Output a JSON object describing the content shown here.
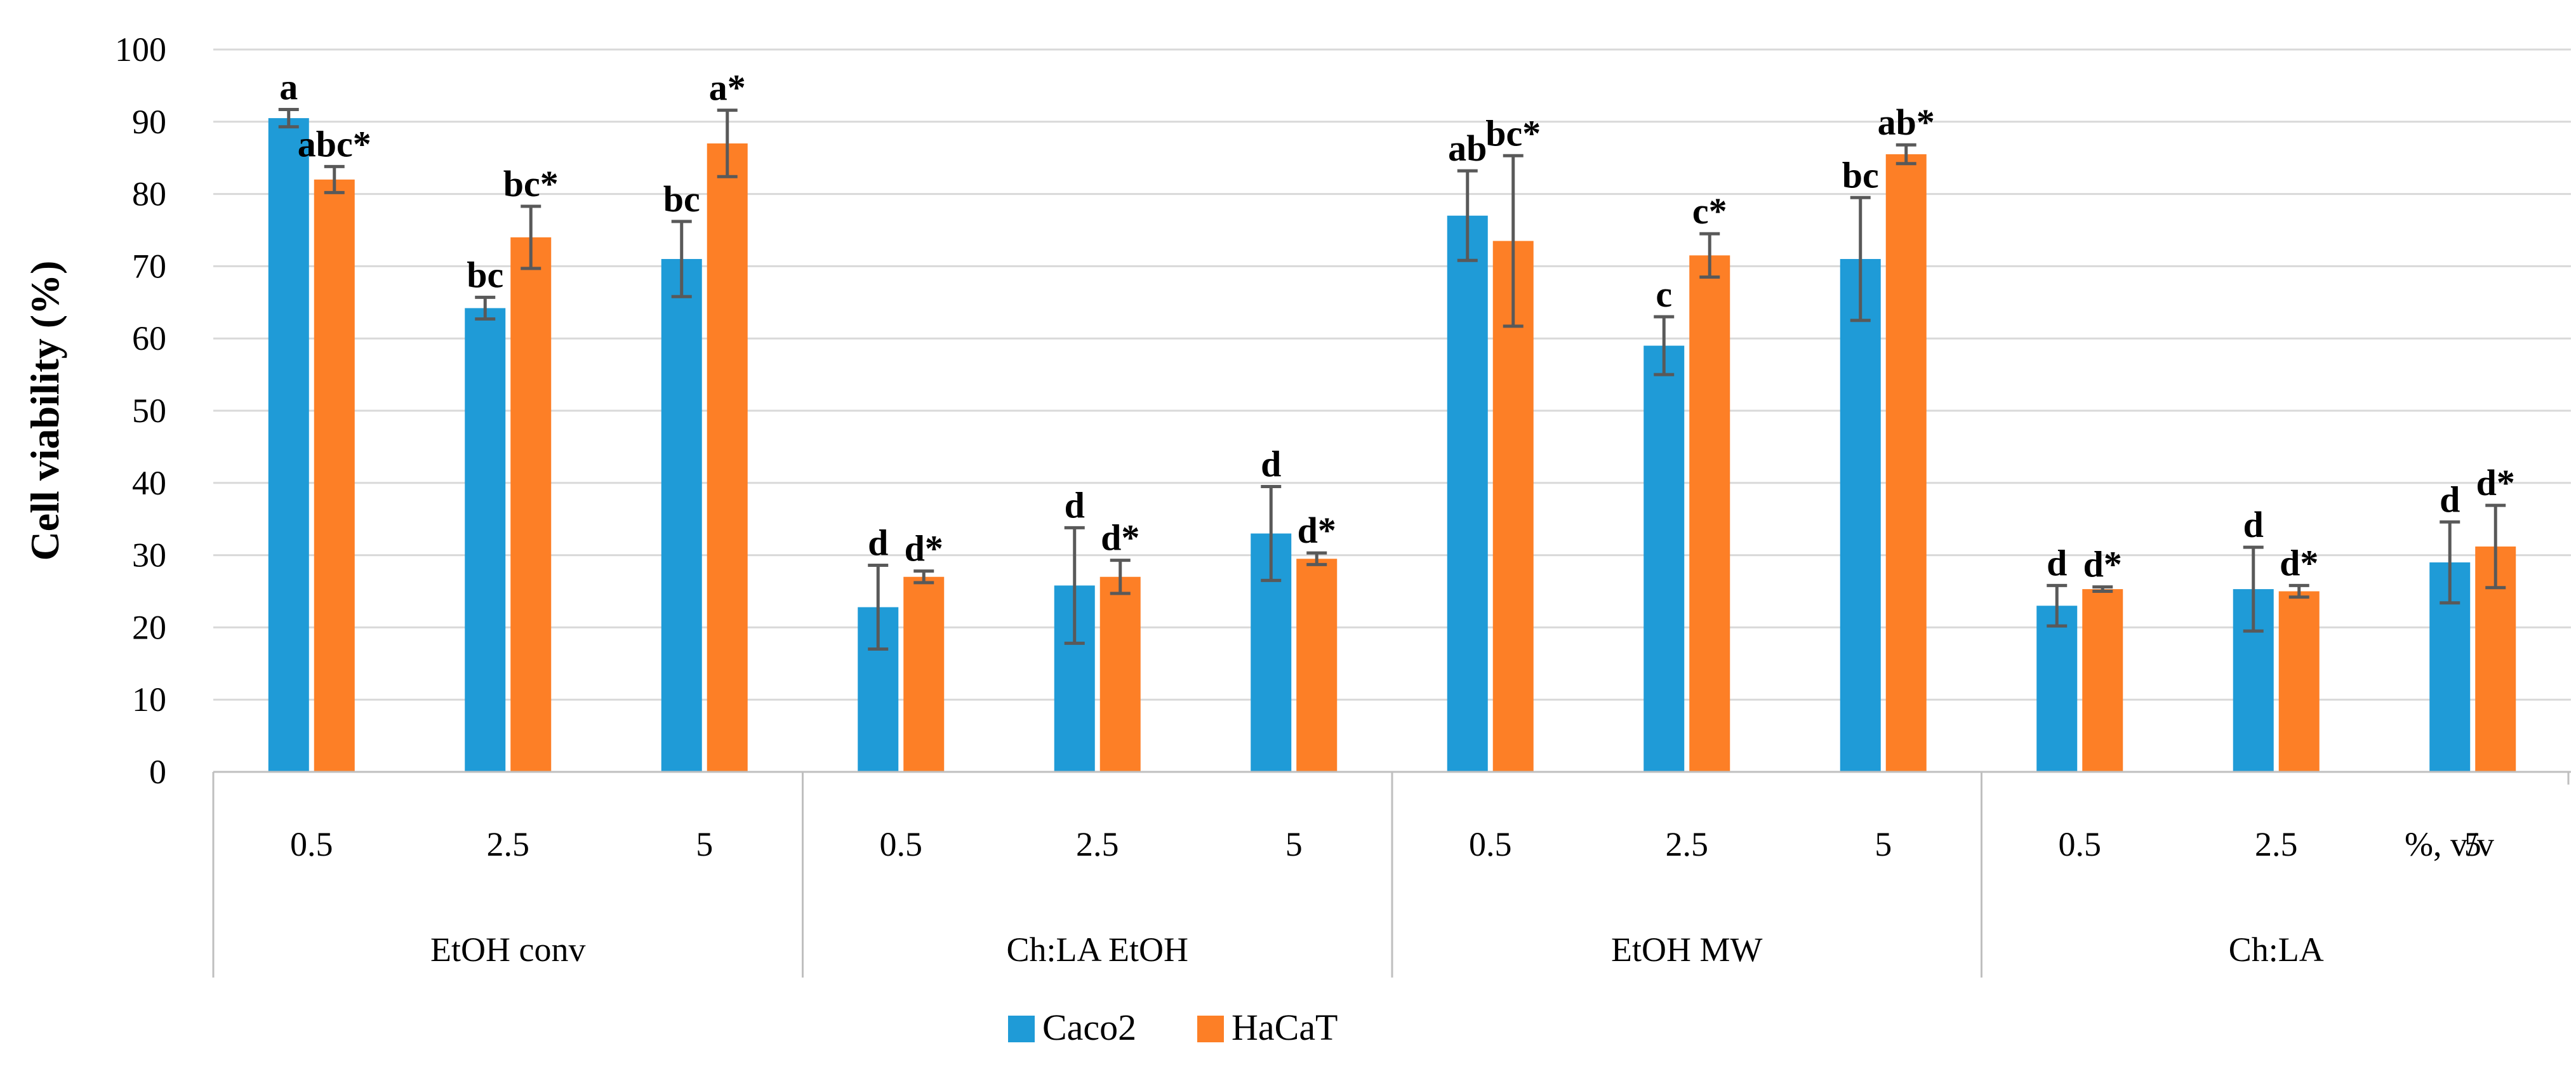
{
  "chart_data": {
    "type": "bar",
    "title": "",
    "ylabel": "Cell viability (%)",
    "xlabel": "%, v/v",
    "ylim": [
      0,
      100
    ],
    "yticks": [
      0,
      10,
      20,
      30,
      40,
      50,
      60,
      70,
      80,
      90,
      100
    ],
    "grid": true,
    "legend_position": "bottom",
    "groups": [
      {
        "name": "EtOH conv",
        "concentrations": [
          "0.5",
          "2.5",
          "5"
        ]
      },
      {
        "name": "Ch:LA EtOH",
        "concentrations": [
          "0.5",
          "2.5",
          "5"
        ]
      },
      {
        "name": "EtOH MW",
        "concentrations": [
          "0.5",
          "2.5",
          "5"
        ]
      },
      {
        "name": "Ch:LA",
        "concentrations": [
          "0.5",
          "2.5",
          "5"
        ]
      }
    ],
    "series": [
      {
        "name": "Caco2",
        "color": "#1f9bd7",
        "values": [
          90.5,
          64.2,
          71,
          22.8,
          25.8,
          33,
          77,
          59,
          71,
          23,
          25.3,
          29
        ],
        "errors": [
          1.2,
          1.5,
          5.2,
          5.8,
          8,
          6.5,
          6.2,
          4,
          8.5,
          2.8,
          5.8,
          5.6
        ],
        "labels": [
          "a",
          "bc",
          "bc",
          "d",
          "d",
          "d",
          "ab",
          "c",
          "bc",
          "d",
          "d",
          "d"
        ]
      },
      {
        "name": "HaCaT",
        "color": "#fd7f26",
        "values": [
          82,
          74,
          87,
          27,
          27,
          29.5,
          73.5,
          71.5,
          85.5,
          25.3,
          25,
          31.2
        ],
        "errors": [
          1.8,
          4.3,
          4.6,
          0.8,
          2.3,
          0.8,
          11.8,
          3,
          1.3,
          0.3,
          0.8,
          5.7
        ],
        "labels": [
          "abc*",
          "bc*",
          "a*",
          "d*",
          "d*",
          "d*",
          "bc*",
          "c*",
          "ab*",
          "d*",
          "d*",
          "d*"
        ]
      }
    ]
  }
}
